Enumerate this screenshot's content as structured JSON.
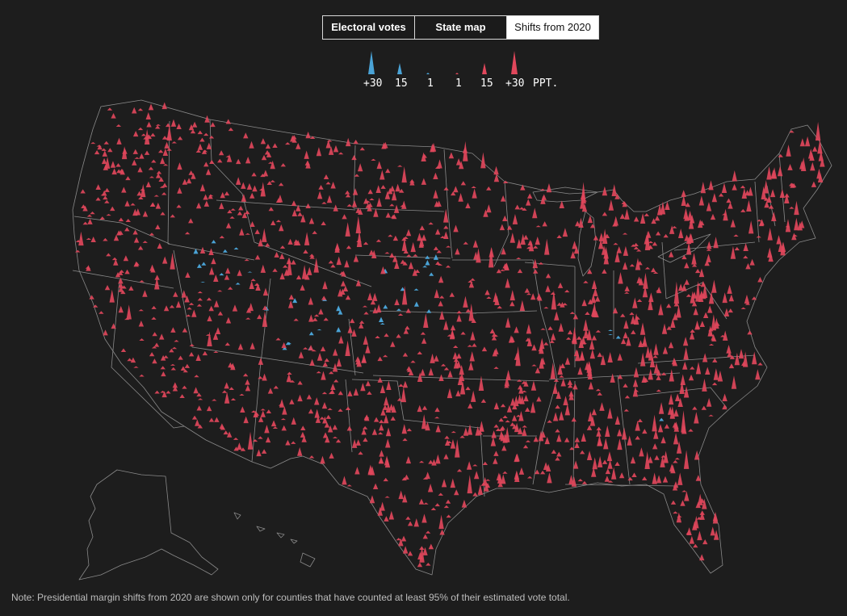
{
  "tabs": [
    {
      "label": "Electoral votes",
      "active": false
    },
    {
      "label": "State map",
      "active": false
    },
    {
      "label": "Shifts from 2020",
      "active": true
    }
  ],
  "legend": {
    "items": [
      {
        "label": "+30",
        "party": "dem",
        "shift": 30
      },
      {
        "label": "15",
        "party": "dem",
        "shift": 15
      },
      {
        "label": "1",
        "party": "dem",
        "shift": 1
      },
      {
        "label": "1",
        "party": "rep",
        "shift": 1
      },
      {
        "label": "15",
        "party": "rep",
        "shift": 15
      },
      {
        "label": "+30",
        "party": "rep",
        "shift": 30
      }
    ],
    "unit": "PPT."
  },
  "colors": {
    "background": "#1d1d1d",
    "dem": "#4aa3d6",
    "rep": "#e0475b",
    "state_border": "#8a8a8a",
    "note_text": "#bdbdbd"
  },
  "note": "Note: Presidential margin shifts from 2020 are shown only for counties that have counted at least 95% of their estimated vote total."
}
